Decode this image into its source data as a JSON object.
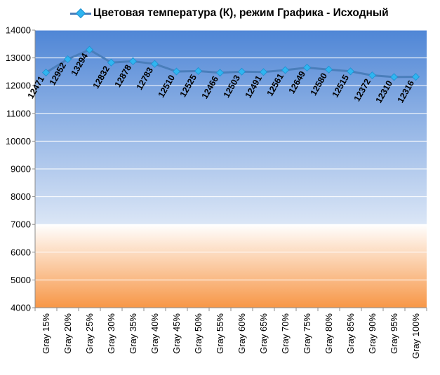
{
  "chart_data": {
    "type": "line",
    "title": "",
    "xlabel": "",
    "ylabel": "",
    "ylim": [
      4000,
      14000
    ],
    "yticks": [
      4000,
      5000,
      6000,
      7000,
      8000,
      9000,
      10000,
      11000,
      12000,
      13000,
      14000
    ],
    "grid": true,
    "legend_position": "top",
    "categories": [
      "Gray 15%",
      "Gray 20%",
      "Gray 25%",
      "Gray 30%",
      "Gray 35%",
      "Gray 40%",
      "Gray 45%",
      "Gray 50%",
      "Gray 55%",
      "Gray 60%",
      "Gray 65%",
      "Gray 70%",
      "Gray 75%",
      "Gray 80%",
      "Gray 85%",
      "Gray 90%",
      "Gray 95%",
      "Gray 100%"
    ],
    "series": [
      {
        "name": "Цветовая температура (К), режим Графика - Исходный",
        "values": [
          12471,
          12952,
          13294,
          12832,
          12878,
          12783,
          12510,
          12525,
          12466,
          12503,
          12491,
          12561,
          12649,
          12580,
          12515,
          12372,
          12310,
          12316
        ],
        "color": "#4a7ebb",
        "marker_color": "#2fb5f0"
      }
    ],
    "background": {
      "upper_gradient": [
        "#4f86d6",
        "#dbe6f6"
      ],
      "lower_gradient": [
        "#ffffff",
        "#f79646"
      ],
      "split_value": 7000
    }
  }
}
